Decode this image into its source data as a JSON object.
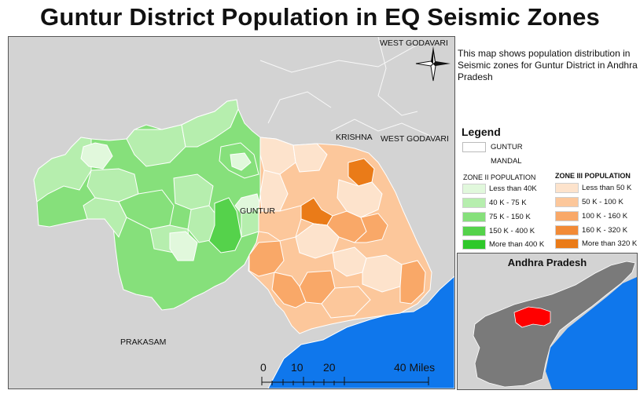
{
  "title": "Guntur District Population in EQ Seismic Zones",
  "description": "This map shows population distribution in Seismic zones for Guntur District in Andhra Pradesh",
  "map_labels": {
    "west_godavari_top": "WEST GODAVARI",
    "krishna": "KRISHNA",
    "west_godavari_mid": "WEST GODAVARI",
    "guntur": "GUNTUR",
    "prakasam": "PRAKASAM"
  },
  "legend": {
    "title": "Legend",
    "guntur_label": "GUNTUR",
    "mandal_label": "MANDAL",
    "zone2": {
      "heading": "ZONE II POPULATION",
      "classes": [
        {
          "label": "Less than 40K",
          "color": "#e1f8dc"
        },
        {
          "label": "40 K - 75 K",
          "color": "#b6eeae"
        },
        {
          "label": "75 K - 150 K",
          "color": "#86e07b"
        },
        {
          "label": "150 K - 400 K",
          "color": "#55d24b"
        },
        {
          "label": "More than 400 K",
          "color": "#2ec82a"
        }
      ]
    },
    "zone3": {
      "heading": "ZONE III POPULATION",
      "classes": [
        {
          "label": "Less than 50 K",
          "color": "#fde3cc"
        },
        {
          "label": "50 K - 100 K",
          "color": "#fcc79b"
        },
        {
          "label": "100 K - 160 K",
          "color": "#f9a868"
        },
        {
          "label": "160 K - 320 K",
          "color": "#f28a36"
        },
        {
          "label": "More than 320 K",
          "color": "#ea7b18"
        }
      ]
    }
  },
  "inset": {
    "title": "Andhra Pradesh"
  },
  "scale_bar": {
    "ticks": [
      "0",
      "10",
      "20",
      "40 Miles"
    ]
  },
  "colors": {
    "background": "#d3d3d3",
    "sea": "#0f77ec",
    "district_outline": "#ffffff",
    "inset_state": "#7a7a7a",
    "inset_highlight": "#ff0000"
  }
}
